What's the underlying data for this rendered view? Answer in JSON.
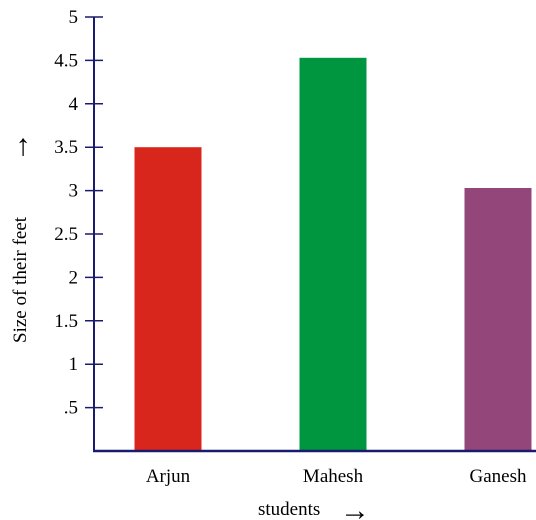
{
  "chart_data": {
    "type": "bar",
    "categories": [
      "Arjun",
      "Mahesh",
      "Ganesh"
    ],
    "values": [
      3.5,
      4.53,
      3.03
    ],
    "bar_colors": [
      "#d9261c",
      "#009640",
      "#93467a"
    ],
    "axis_color": "#1a1a6e",
    "xlabel": "students",
    "ylabel": "Size of their feet",
    "ylim": [
      0,
      5
    ],
    "yticks": [
      0.5,
      1,
      1.5,
      2,
      2.5,
      3,
      3.5,
      4,
      4.5,
      5
    ],
    "ytick_labels": [
      ".5",
      "1",
      "1.5",
      "2",
      "2.5",
      "3",
      "3.5",
      "4",
      "4.5",
      "5"
    ],
    "grid": false,
    "axis_arrows": "→"
  }
}
